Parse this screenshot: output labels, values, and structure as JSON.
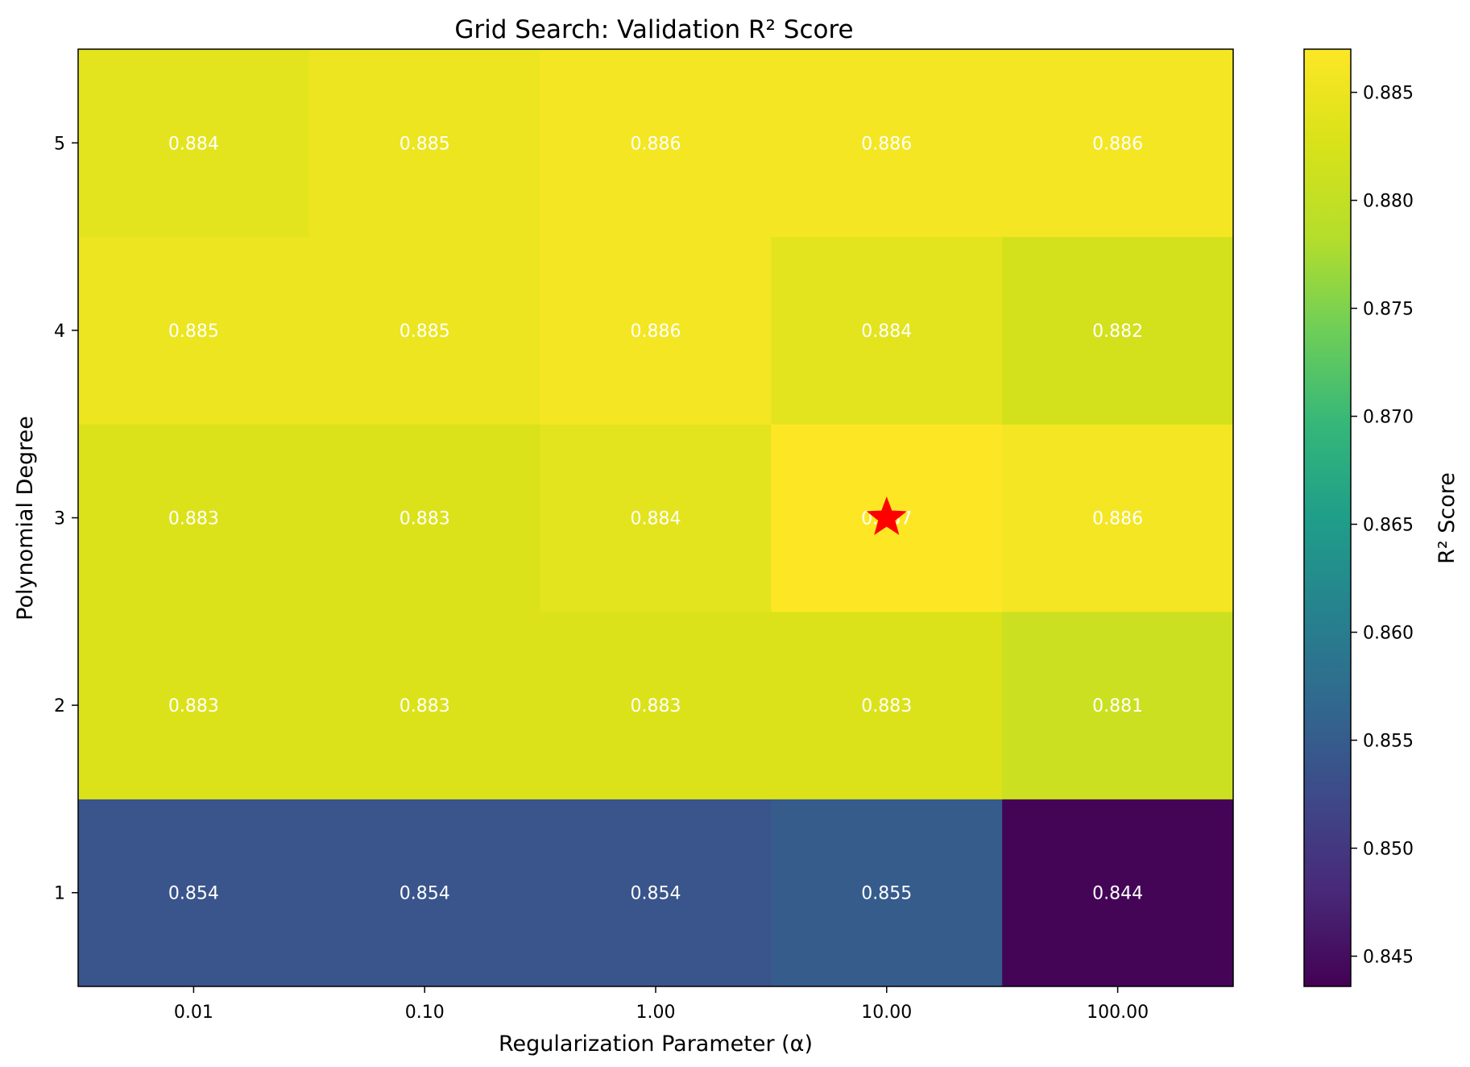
{
  "chart_data": {
    "type": "heatmap",
    "title": "Grid Search: Validation R² Score",
    "xlabel": "Regularization Parameter (α)",
    "ylabel": "Polynomial Degree",
    "x_categories": [
      "0.01",
      "0.10",
      "1.00",
      "10.00",
      "100.00"
    ],
    "y_categories": [
      "1",
      "2",
      "3",
      "4",
      "5"
    ],
    "values": [
      [
        0.854,
        0.854,
        0.854,
        0.855,
        0.844
      ],
      [
        0.883,
        0.883,
        0.883,
        0.883,
        0.881
      ],
      [
        0.883,
        0.883,
        0.884,
        0.887,
        0.886
      ],
      [
        0.885,
        0.885,
        0.886,
        0.884,
        0.882
      ],
      [
        0.884,
        0.885,
        0.886,
        0.886,
        0.886
      ]
    ],
    "value_labels": [
      [
        "0.854",
        "0.854",
        "0.854",
        "0.855",
        "0.844"
      ],
      [
        "0.883",
        "0.883",
        "0.883",
        "0.883",
        "0.881"
      ],
      [
        "0.883",
        "0.883",
        "0.884",
        "0.887",
        "0.886"
      ],
      [
        "0.885",
        "0.885",
        "0.886",
        "0.884",
        "0.882"
      ],
      [
        "0.884",
        "0.885",
        "0.886",
        "0.886",
        "0.886"
      ]
    ],
    "colormap": "viridis",
    "colorbar": {
      "label": "R² Score",
      "range": [
        0.8436,
        0.887
      ],
      "ticks": [
        "0.845",
        "0.850",
        "0.855",
        "0.860",
        "0.865",
        "0.870",
        "0.875",
        "0.880",
        "0.885"
      ]
    },
    "best_marker": {
      "x": "10.00",
      "y": "3",
      "shape": "star",
      "color": "#ff0000"
    }
  }
}
